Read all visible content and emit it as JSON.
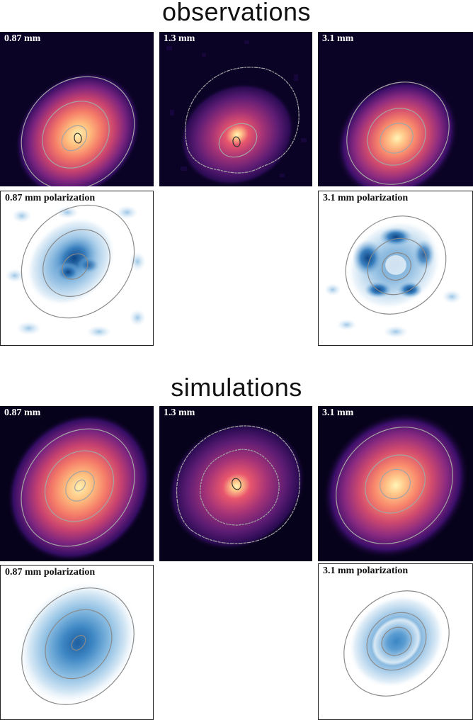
{
  "sections": {
    "observations": "observations",
    "simulations": "simulations"
  },
  "labels": {
    "obs_087": "0.87 mm",
    "obs_13": "1.3 mm",
    "obs_31": "3.1 mm",
    "obs_pol_087": "0.87 mm polarization",
    "obs_pol_31": "3.1 mm polarization",
    "sim_087": "0.87 mm",
    "sim_13": "1.3 mm",
    "sim_31": "3.1 mm",
    "sim_pol_087": "0.87 mm polarization",
    "sim_pol_31": "3.1 mm polarization"
  },
  "colors": {
    "intensity_map": [
      "#fff5b8",
      "#ffc88a",
      "#f8866b",
      "#d04a6e",
      "#8a2a80",
      "#3c0f6a",
      "#0b0326"
    ],
    "polarization_map": [
      "#08306b",
      "#2f78b9",
      "#7fb2dd",
      "#cfe3f3",
      "#ffffff"
    ],
    "contour": "#9a9a9a"
  }
}
